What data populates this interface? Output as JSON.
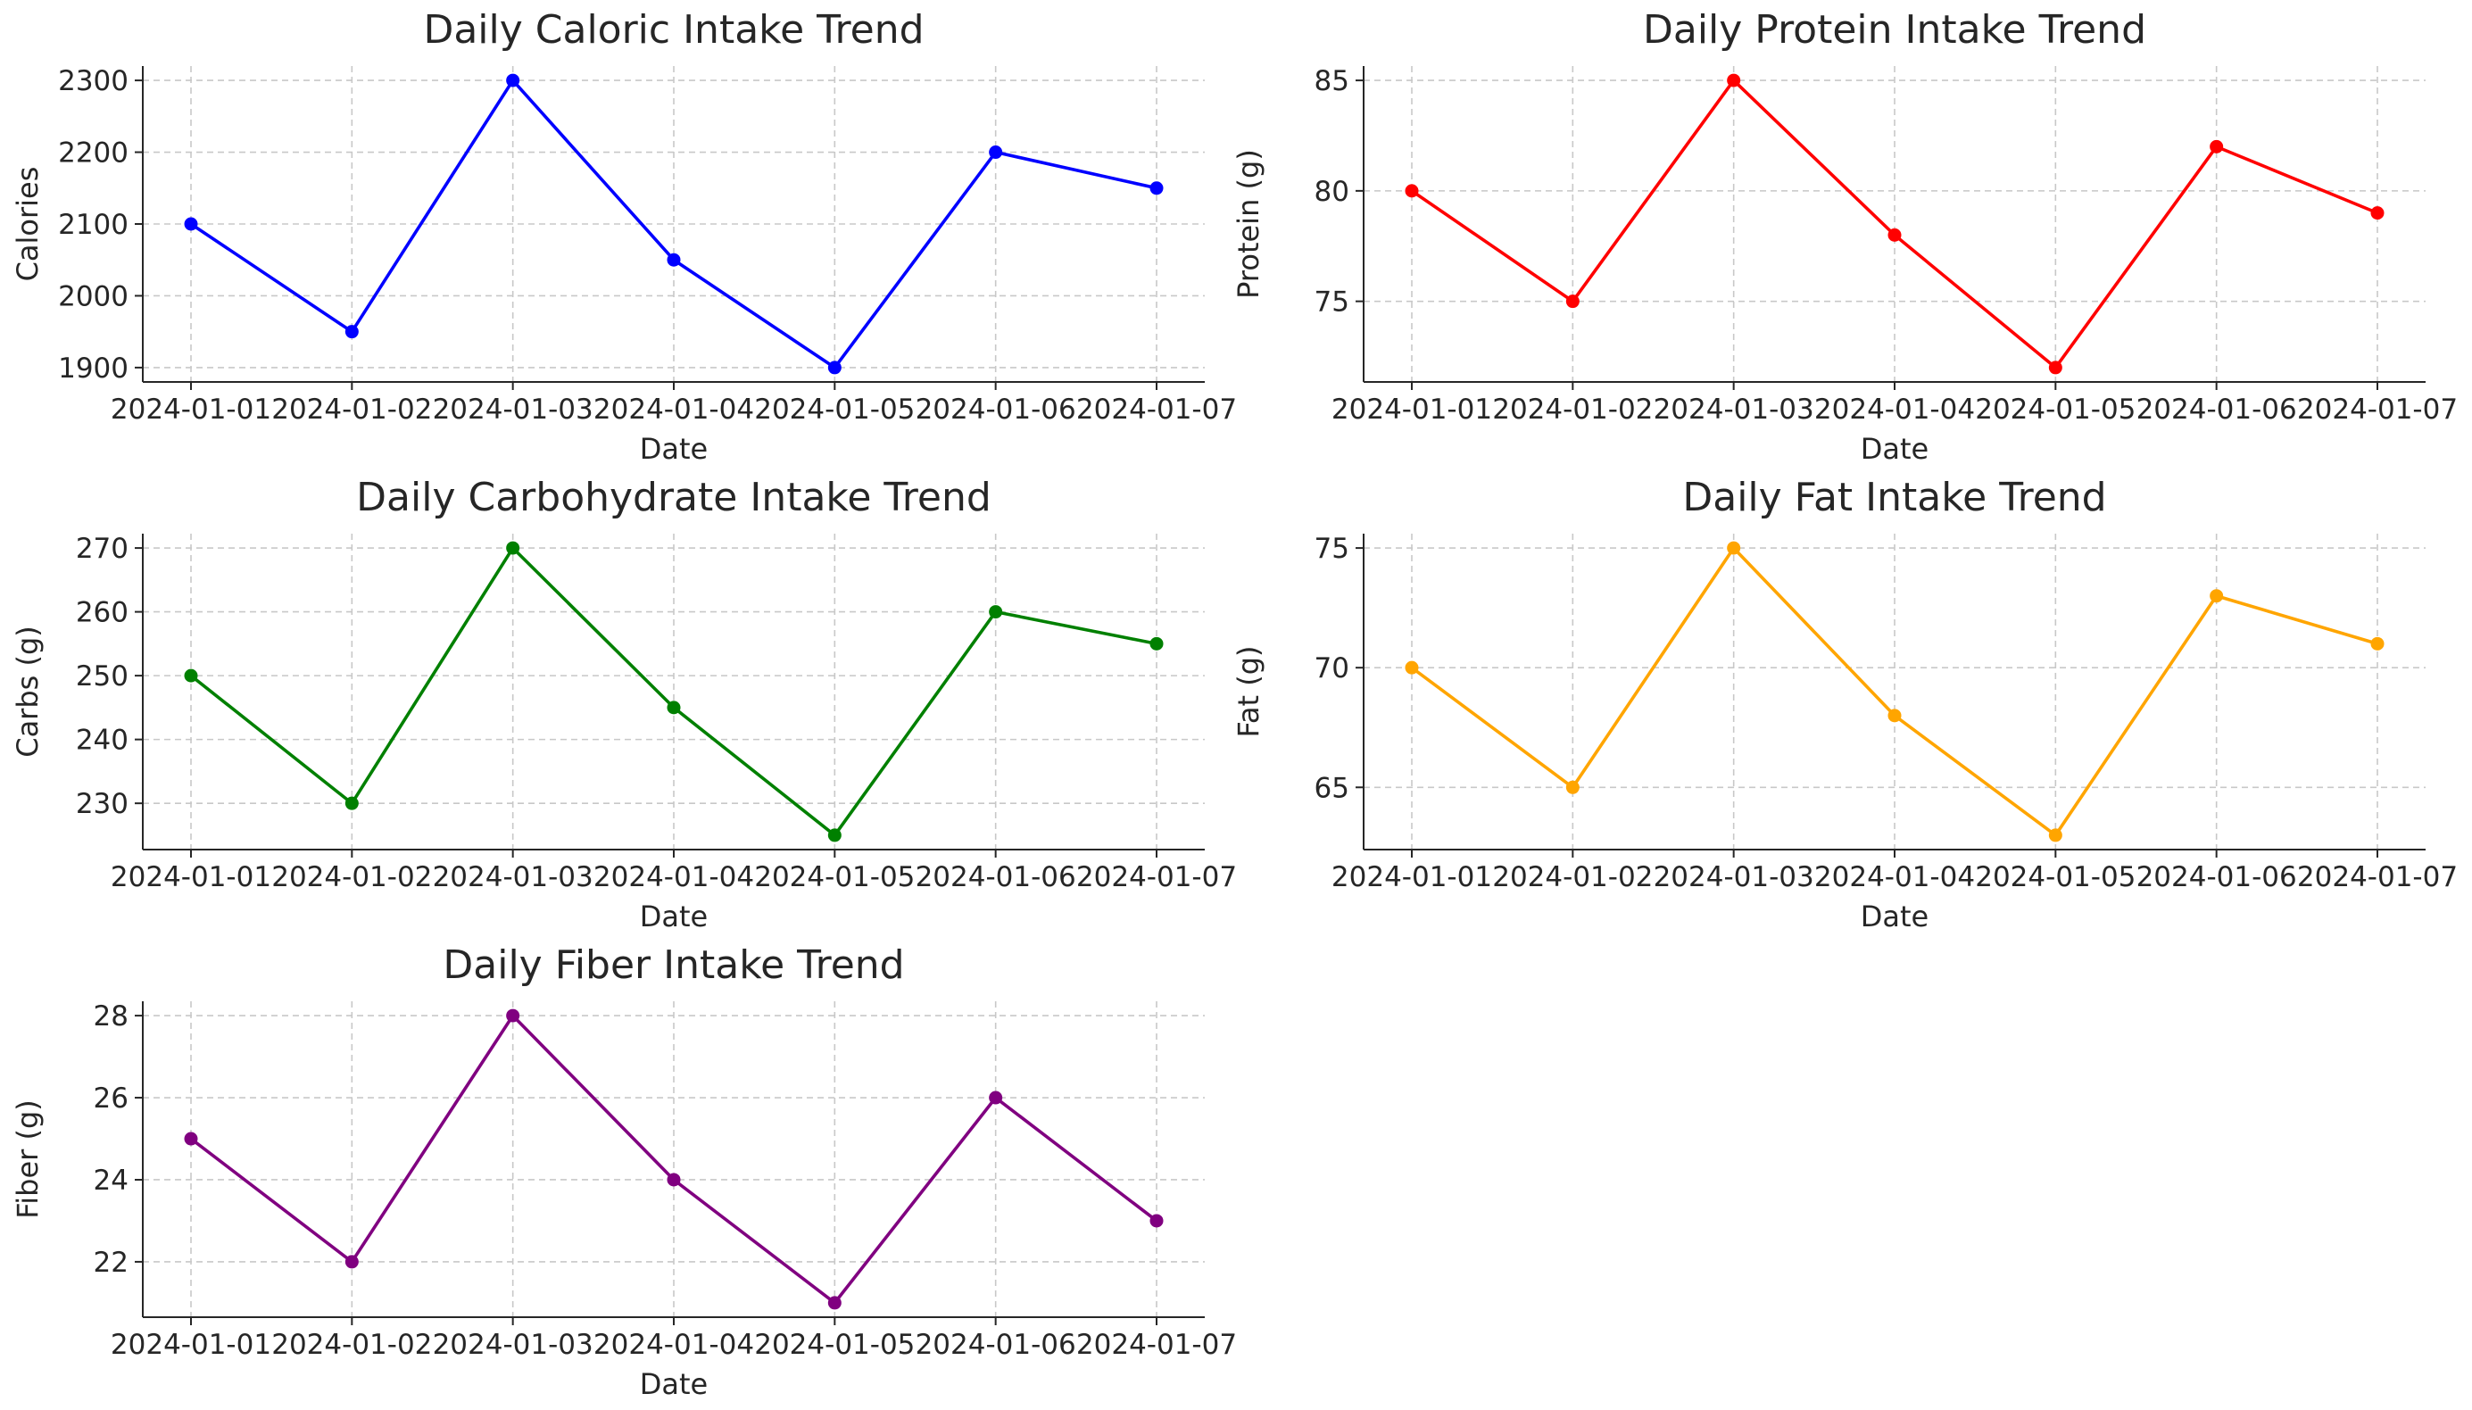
{
  "chart_data": [
    {
      "type": "line",
      "title": "Daily Caloric Intake Trend",
      "xlabel": "Date",
      "ylabel": "Calories",
      "color": "#0000ff",
      "x": [
        "2024-01-01",
        "2024-01-02",
        "2024-01-03",
        "2024-01-04",
        "2024-01-05",
        "2024-01-06",
        "2024-01-07"
      ],
      "values": [
        2100,
        1950,
        2300,
        2050,
        1900,
        2200,
        2150
      ],
      "yticks": [
        1900,
        2000,
        2100,
        2200,
        2300
      ],
      "ylim": [
        1880,
        2320
      ],
      "grid": true
    },
    {
      "type": "line",
      "title": "Daily Protein Intake Trend",
      "xlabel": "Date",
      "ylabel": "Protein (g)",
      "color": "#ff0000",
      "x": [
        "2024-01-01",
        "2024-01-02",
        "2024-01-03",
        "2024-01-04",
        "2024-01-05",
        "2024-01-06",
        "2024-01-07"
      ],
      "values": [
        80,
        75,
        85,
        78,
        72,
        82,
        79
      ],
      "yticks": [
        75,
        80,
        85
      ],
      "ylim": [
        71.35,
        85.65
      ],
      "grid": true
    },
    {
      "type": "line",
      "title": "Daily Carbohydrate Intake Trend",
      "xlabel": "Date",
      "ylabel": "Carbs (g)",
      "color": "#008000",
      "x": [
        "2024-01-01",
        "2024-01-02",
        "2024-01-03",
        "2024-01-04",
        "2024-01-05",
        "2024-01-06",
        "2024-01-07"
      ],
      "values": [
        250,
        230,
        270,
        245,
        225,
        260,
        255
      ],
      "yticks": [
        230,
        240,
        250,
        260,
        270
      ],
      "ylim": [
        222.75,
        272.25
      ],
      "grid": true
    },
    {
      "type": "line",
      "title": "Daily Fat Intake Trend",
      "xlabel": "Date",
      "ylabel": "Fat (g)",
      "color": "#ffa500",
      "x": [
        "2024-01-01",
        "2024-01-02",
        "2024-01-03",
        "2024-01-04",
        "2024-01-05",
        "2024-01-06",
        "2024-01-07"
      ],
      "values": [
        70,
        65,
        75,
        68,
        63,
        73,
        71
      ],
      "yticks": [
        65,
        70,
        75
      ],
      "ylim": [
        62.4,
        75.6
      ],
      "grid": true
    },
    {
      "type": "line",
      "title": "Daily Fiber Intake Trend",
      "xlabel": "Date",
      "ylabel": "Fiber (g)",
      "color": "#800080",
      "x": [
        "2024-01-01",
        "2024-01-02",
        "2024-01-03",
        "2024-01-04",
        "2024-01-05",
        "2024-01-06",
        "2024-01-07"
      ],
      "values": [
        25,
        22,
        28,
        24,
        21,
        26,
        23
      ],
      "yticks": [
        22,
        24,
        26,
        28
      ],
      "ylim": [
        20.65,
        28.35
      ],
      "grid": true
    }
  ]
}
